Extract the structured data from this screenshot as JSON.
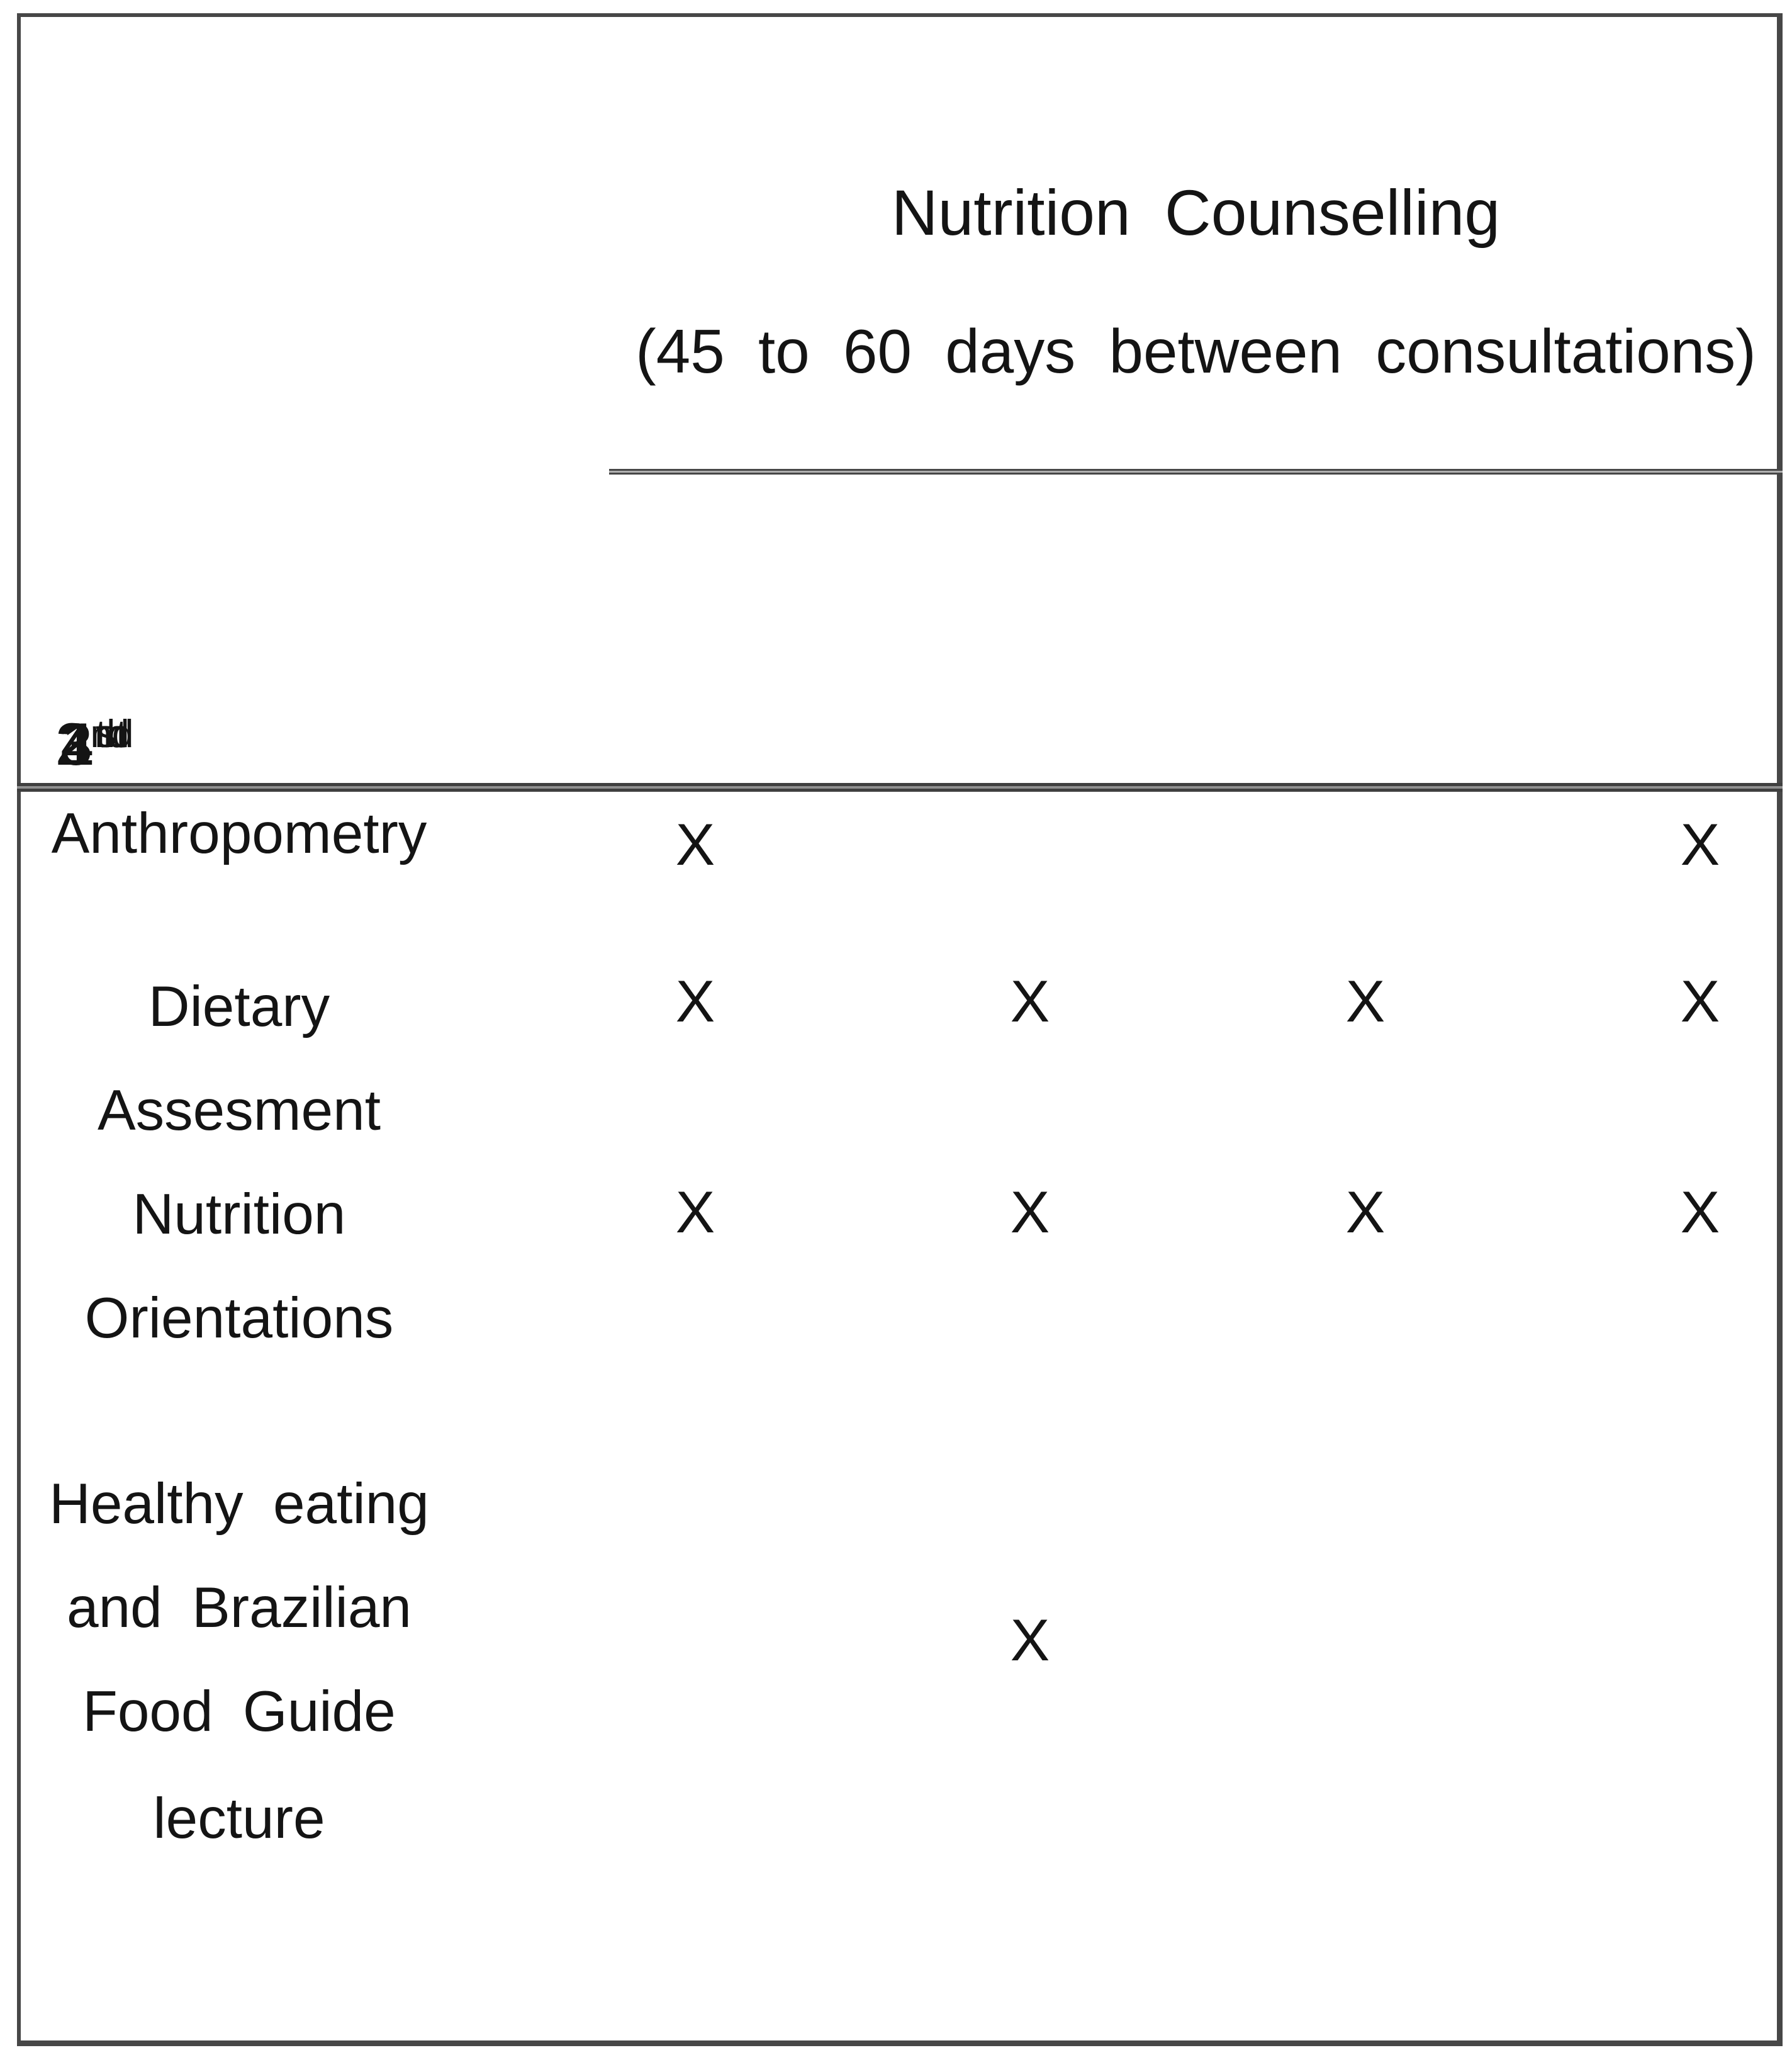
{
  "figure": {
    "header": {
      "title": "Nutrition Counselling",
      "subtitle": "(45 to 60 days between consultations)"
    },
    "columns": [
      {
        "ordinal": "1",
        "suffix": "st"
      },
      {
        "ordinal": "2",
        "suffix": "nd"
      },
      {
        "ordinal": "3",
        "suffix": "rd"
      },
      {
        "ordinal": "4",
        "suffix": "th"
      }
    ],
    "rows": [
      {
        "label_lines": [
          "Anthropometry"
        ],
        "marks": [
          "X",
          "",
          "",
          "X"
        ]
      },
      {
        "label_lines": [
          "Dietary",
          "Assesment"
        ],
        "marks": [
          "X",
          "X",
          "X",
          "X"
        ]
      },
      {
        "label_lines": [
          "Nutrition",
          "Orientations"
        ],
        "marks": [
          "X",
          "X",
          "X",
          "X"
        ]
      },
      {
        "label_lines": [
          "Healthy eating",
          "and Brazilian",
          "Food Guide",
          "lecture"
        ],
        "marks": [
          "",
          "X",
          "",
          ""
        ]
      }
    ],
    "colors": {
      "rule": "#474747",
      "text": "#141414",
      "background": "#ffffff"
    }
  },
  "chart_data": {
    "type": "table",
    "title": "Nutrition Counselling (45 to 60 days between consultations)",
    "columns": [
      "1st",
      "2nd",
      "3rd",
      "4th"
    ],
    "rows": [
      {
        "activity": "Anthropometry",
        "consultations": [
          "1st",
          "4th"
        ]
      },
      {
        "activity": "Dietary Assesment",
        "consultations": [
          "1st",
          "2nd",
          "3rd",
          "4th"
        ]
      },
      {
        "activity": "Nutrition Orientations",
        "consultations": [
          "1st",
          "2nd",
          "3rd",
          "4th"
        ]
      },
      {
        "activity": "Healthy eating and Brazilian Food Guide lecture",
        "consultations": [
          "2nd"
        ]
      }
    ],
    "mark_glyph": "X"
  }
}
